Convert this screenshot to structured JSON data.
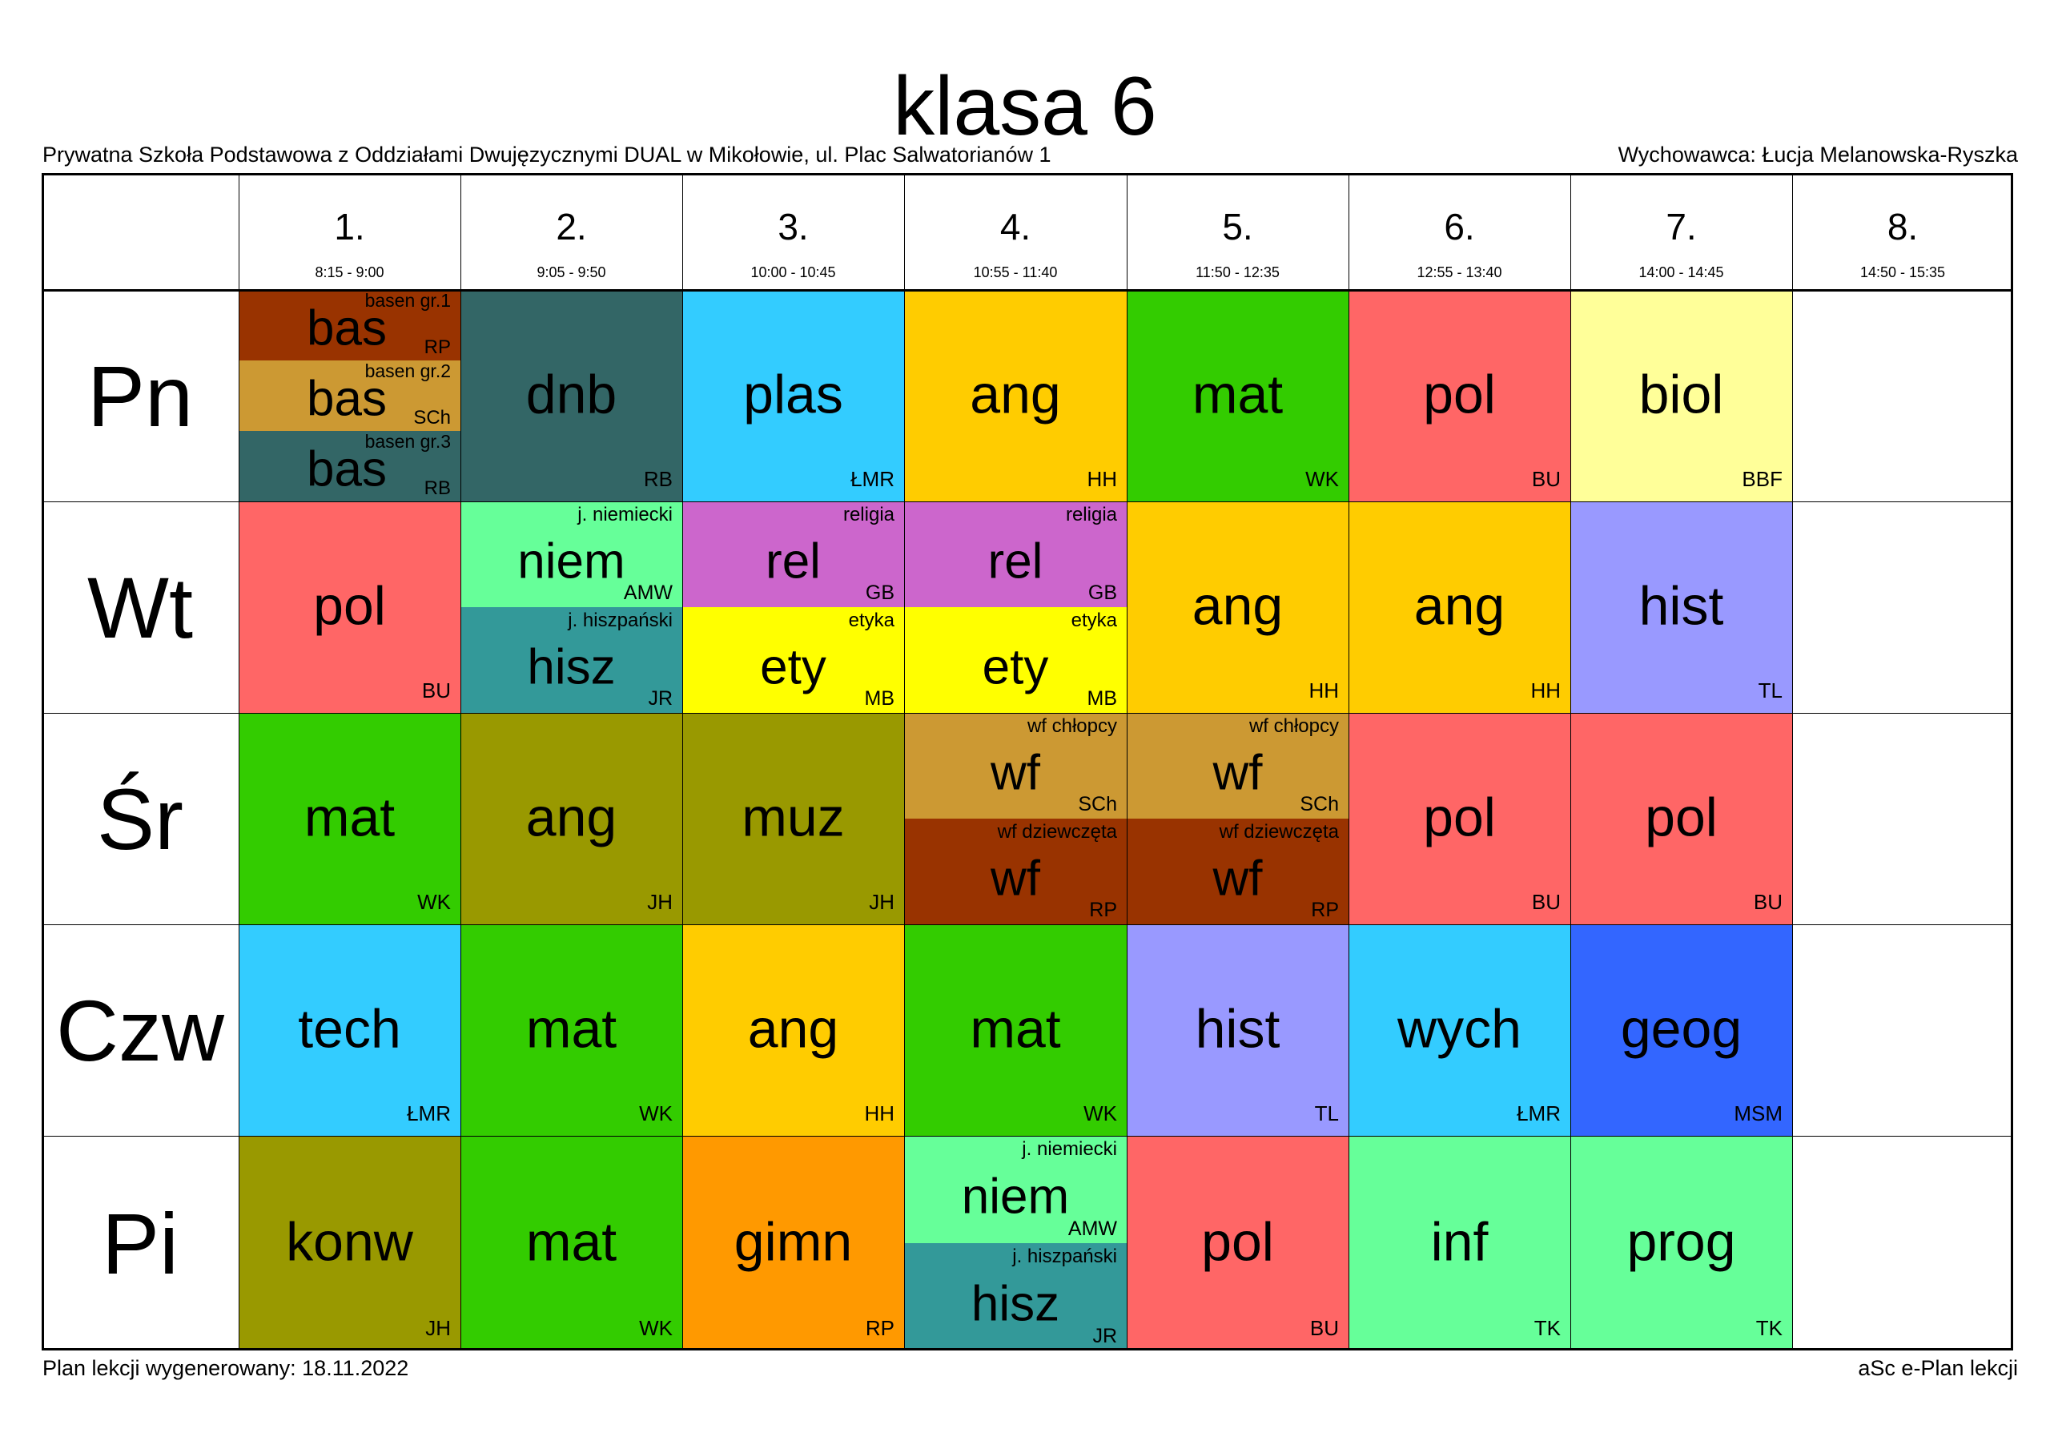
{
  "header": {
    "title": "klasa 6",
    "school": "Prywatna Szkoła Podstawowa z Oddziałami Dwujęzycznymi DUAL w Mikołowie, ul. Plac Salwatorianów 1",
    "teacher": "Wychowawca: Łucja Melanowska-Ryszka"
  },
  "footer": {
    "generated": "Plan lekcji wygenerowany: 18.11.2022",
    "software": "aSc e-Plan lekcji"
  },
  "periods": [
    {
      "num": "1.",
      "time": "8:15 - 9:00"
    },
    {
      "num": "2.",
      "time": "9:05 - 9:50"
    },
    {
      "num": "3.",
      "time": "10:00 - 10:45"
    },
    {
      "num": "4.",
      "time": "10:55 - 11:40"
    },
    {
      "num": "5.",
      "time": "11:50 - 12:35"
    },
    {
      "num": "6.",
      "time": "12:55 - 13:40"
    },
    {
      "num": "7.",
      "time": "14:00 - 14:45"
    },
    {
      "num": "8.",
      "time": "14:50 - 15:35"
    }
  ],
  "days": [
    "Pn",
    "Wt",
    "Śr",
    "Czw",
    "Pi"
  ],
  "lessons": [
    [
      [
        {
          "subject": "bas",
          "group": "basen gr.1",
          "teacher": "RP",
          "color": "#993300"
        },
        {
          "subject": "bas",
          "group": "basen gr.2",
          "teacher": "SCh",
          "color": "#CC9933"
        },
        {
          "subject": "bas",
          "group": "basen gr.3",
          "teacher": "RB",
          "color": "#336666"
        }
      ],
      [
        {
          "subject": "dnb",
          "teacher": "RB",
          "color": "#336666"
        }
      ],
      [
        {
          "subject": "plas",
          "teacher": "ŁMR",
          "color": "#33CCFF"
        }
      ],
      [
        {
          "subject": "ang",
          "teacher": "HH",
          "color": "#FFCC00"
        }
      ],
      [
        {
          "subject": "mat",
          "teacher": "WK",
          "color": "#33CC00"
        }
      ],
      [
        {
          "subject": "pol",
          "teacher": "BU",
          "color": "#FF6666"
        }
      ],
      [
        {
          "subject": "biol",
          "teacher": "BBF",
          "color": "#FFFF99"
        }
      ],
      []
    ],
    [
      [
        {
          "subject": "pol",
          "teacher": "BU",
          "color": "#FF6666"
        }
      ],
      [
        {
          "subject": "niem",
          "group": "j. niemiecki",
          "teacher": "AMW",
          "color": "#66FF99"
        },
        {
          "subject": "hisz",
          "group": "j. hiszpański",
          "teacher": "JR",
          "color": "#339999"
        }
      ],
      [
        {
          "subject": "rel",
          "group": "religia",
          "teacher": "GB",
          "color": "#CC66CC"
        },
        {
          "subject": "ety",
          "group": "etyka",
          "teacher": "MB",
          "color": "#FFFF00"
        }
      ],
      [
        {
          "subject": "rel",
          "group": "religia",
          "teacher": "GB",
          "color": "#CC66CC"
        },
        {
          "subject": "ety",
          "group": "etyka",
          "teacher": "MB",
          "color": "#FFFF00"
        }
      ],
      [
        {
          "subject": "ang",
          "teacher": "HH",
          "color": "#FFCC00"
        }
      ],
      [
        {
          "subject": "ang",
          "teacher": "HH",
          "color": "#FFCC00"
        }
      ],
      [
        {
          "subject": "hist",
          "teacher": "TL",
          "color": "#9999FF"
        }
      ],
      []
    ],
    [
      [
        {
          "subject": "mat",
          "teacher": "WK",
          "color": "#33CC00"
        }
      ],
      [
        {
          "subject": "ang",
          "teacher": "JH",
          "color": "#999900"
        }
      ],
      [
        {
          "subject": "muz",
          "teacher": "JH",
          "color": "#999900"
        }
      ],
      [
        {
          "subject": "wf",
          "group": "wf chłopcy",
          "teacher": "SCh",
          "color": "#CC9933"
        },
        {
          "subject": "wf",
          "group": "wf dziewczęta",
          "teacher": "RP",
          "color": "#993300"
        }
      ],
      [
        {
          "subject": "wf",
          "group": "wf chłopcy",
          "teacher": "SCh",
          "color": "#CC9933"
        },
        {
          "subject": "wf",
          "group": "wf dziewczęta",
          "teacher": "RP",
          "color": "#993300"
        }
      ],
      [
        {
          "subject": "pol",
          "teacher": "BU",
          "color": "#FF6666"
        }
      ],
      [
        {
          "subject": "pol",
          "teacher": "BU",
          "color": "#FF6666"
        }
      ],
      []
    ],
    [
      [
        {
          "subject": "tech",
          "teacher": "ŁMR",
          "color": "#33CCFF"
        }
      ],
      [
        {
          "subject": "mat",
          "teacher": "WK",
          "color": "#33CC00"
        }
      ],
      [
        {
          "subject": "ang",
          "teacher": "HH",
          "color": "#FFCC00"
        }
      ],
      [
        {
          "subject": "mat",
          "teacher": "WK",
          "color": "#33CC00"
        }
      ],
      [
        {
          "subject": "hist",
          "teacher": "TL",
          "color": "#9999FF"
        }
      ],
      [
        {
          "subject": "wych",
          "teacher": "ŁMR",
          "color": "#33CCFF"
        }
      ],
      [
        {
          "subject": "geog",
          "teacher": "MSM",
          "color": "#3366FF"
        }
      ],
      []
    ],
    [
      [
        {
          "subject": "konw",
          "teacher": "JH",
          "color": "#999900"
        }
      ],
      [
        {
          "subject": "mat",
          "teacher": "WK",
          "color": "#33CC00"
        }
      ],
      [
        {
          "subject": "gimn",
          "teacher": "RP",
          "color": "#FF9900"
        }
      ],
      [
        {
          "subject": "niem",
          "group": "j. niemiecki",
          "teacher": "AMW",
          "color": "#66FF99"
        },
        {
          "subject": "hisz",
          "group": "j. hiszpański",
          "teacher": "JR",
          "color": "#339999"
        }
      ],
      [
        {
          "subject": "pol",
          "teacher": "BU",
          "color": "#FF6666"
        }
      ],
      [
        {
          "subject": "inf",
          "teacher": "TK",
          "color": "#66FF99"
        }
      ],
      [
        {
          "subject": "prog",
          "teacher": "TK",
          "color": "#66FF99"
        }
      ],
      []
    ]
  ]
}
